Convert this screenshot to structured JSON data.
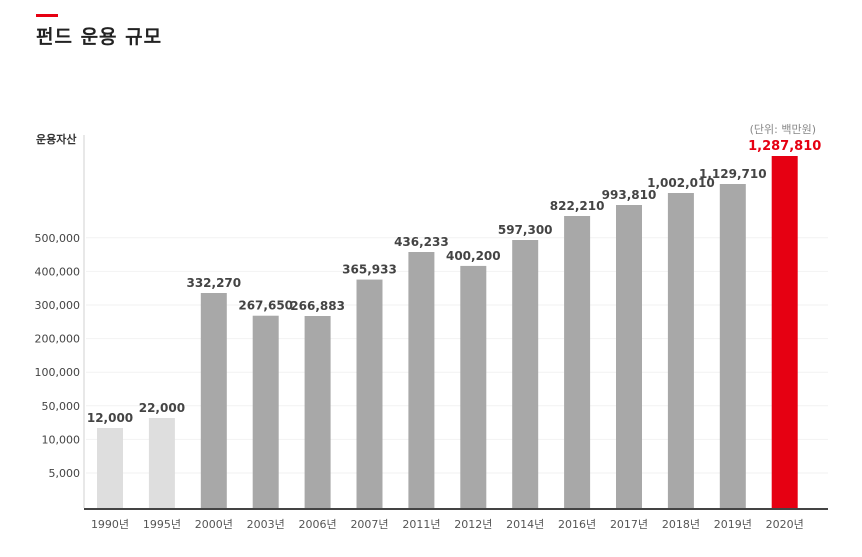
{
  "header": {
    "title": "펀드 운용 규모"
  },
  "colors": {
    "accent": "#e60012",
    "bar_early": "#dedede",
    "bar": "#a8a8a8",
    "bar_highlight": "#e60012"
  },
  "chart_data": {
    "type": "bar",
    "ylabel": "운용자산",
    "unit": "(단위: 백만원)",
    "y_ticks": [
      "5,000",
      "10,000",
      "50,000",
      "100,000",
      "200,000",
      "300,000",
      "400,000",
      "500,000"
    ],
    "categories": [
      "1990년",
      "1995년",
      "2000년",
      "2003년",
      "2006년",
      "2007년",
      "2011년",
      "2012년",
      "2014년",
      "2016년",
      "2017년",
      "2018년",
      "2019년",
      "2020년"
    ],
    "values": [
      12000,
      22000,
      332270,
      267650,
      266883,
      365933,
      436233,
      400200,
      597300,
      822210,
      993810,
      1002010,
      1129710,
      1287810
    ],
    "value_labels": [
      "12,000",
      "22,000",
      "332,270",
      "267,650",
      "266,883",
      "365,933",
      "436,233",
      "400,200",
      "597,300",
      "822,210",
      "993,810",
      "1,002,010",
      "1,129,710",
      "1,287,810"
    ],
    "highlight_category": "2020년",
    "grid": false,
    "legend": "none"
  }
}
